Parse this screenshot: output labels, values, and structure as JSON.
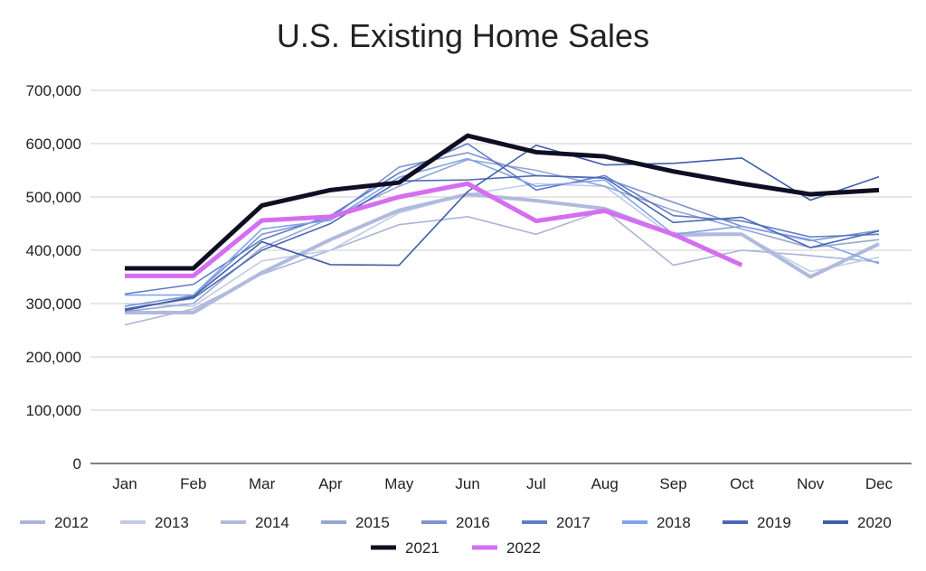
{
  "chart_data": {
    "type": "line",
    "title": "U.S. Existing Home Sales",
    "xlabel": "",
    "ylabel": "",
    "ylim": [
      0,
      700000
    ],
    "yticks": [
      "0",
      "100,000",
      "200,000",
      "300,000",
      "400,000",
      "500,000",
      "600,000",
      "700,000"
    ],
    "ytick_values": [
      0,
      100000,
      200000,
      300000,
      400000,
      500000,
      600000,
      700000
    ],
    "grid": true,
    "legend_position": "bottom",
    "categories": [
      "Jan",
      "Feb",
      "Mar",
      "Apr",
      "May",
      "Jun",
      "Jul",
      "Aug",
      "Sep",
      "Oct",
      "Nov",
      "Dec"
    ],
    "series": [
      {
        "name": "2012",
        "color": "#aab4d8",
        "values": [
          260000,
          290000,
          355000,
          400000,
          448000,
          463000,
          430000,
          475000,
          372000,
          400000,
          390000,
          378000
        ]
      },
      {
        "name": "2013",
        "color": "#c3cbe6",
        "values": [
          300000,
          295000,
          380000,
          400000,
          470000,
          505000,
          525000,
          520000,
          425000,
          430000,
          360000,
          387000
        ]
      },
      {
        "name": "2014",
        "color": "#b0bade",
        "values": [
          283000,
          283000,
          358000,
          420000,
          475000,
          505000,
          493000,
          478000,
          430000,
          430000,
          350000,
          412000
        ]
      },
      {
        "name": "2015",
        "color": "#97a5d2",
        "values": [
          285000,
          300000,
          405000,
          460000,
          520000,
          570000,
          550000,
          520000,
          475000,
          440000,
          405000,
          420000
        ]
      },
      {
        "name": "2016",
        "color": "#7f93cc",
        "values": [
          295000,
          315000,
          430000,
          460000,
          556000,
          583000,
          540000,
          535000,
          490000,
          445000,
          418000,
          437000
        ]
      },
      {
        "name": "2017",
        "color": "#5f7cc6",
        "values": [
          318000,
          336000,
          420000,
          465000,
          545000,
          600000,
          513000,
          540000,
          465000,
          455000,
          425000,
          430000
        ]
      },
      {
        "name": "2018",
        "color": "#7fa4ec",
        "values": [
          316000,
          316000,
          440000,
          456000,
          537000,
          572000,
          520000,
          532000,
          430000,
          445000,
          420000,
          375000
        ]
      },
      {
        "name": "2019",
        "color": "#4a68b4",
        "values": [
          290000,
          310000,
          400000,
          450000,
          530000,
          532000,
          540000,
          536000,
          452000,
          462000,
          405000,
          436000
        ]
      },
      {
        "name": "2020",
        "color": "#3f5ea8",
        "values": [
          287000,
          313000,
          416000,
          373000,
          372000,
          510000,
          597000,
          560000,
          563000,
          573000,
          494000,
          538000
        ]
      },
      {
        "name": "2021",
        "color": "#0f0f24",
        "values": [
          366000,
          366000,
          484000,
          513000,
          527000,
          615000,
          584000,
          576000,
          548000,
          525000,
          505000,
          513000
        ]
      },
      {
        "name": "2022",
        "color": "#d56ef0",
        "values": [
          352000,
          352000,
          456000,
          463000,
          500000,
          525000,
          455000,
          474000,
          430000,
          372000,
          null,
          null
        ]
      }
    ]
  }
}
